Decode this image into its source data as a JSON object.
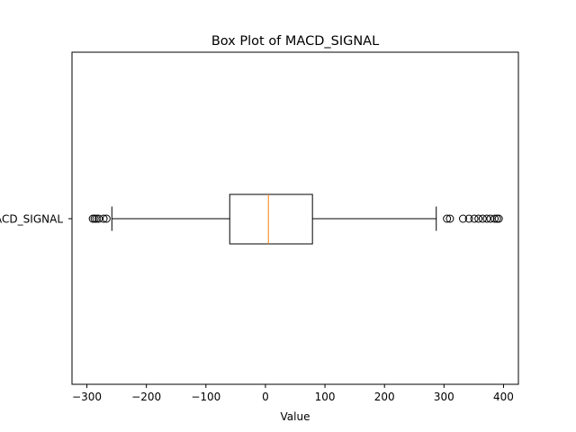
{
  "chart_data": {
    "type": "boxplot",
    "orientation": "horizontal",
    "title": "Box Plot of MACD_SIGNAL",
    "xlabel": "Value",
    "ylabel": "",
    "category_label": "MACD_SIGNAL",
    "xlim": [
      -325,
      425
    ],
    "xticks": [
      -300,
      -200,
      -100,
      0,
      100,
      200,
      300,
      400
    ],
    "xtick_labels": [
      "−300",
      "−200",
      "−100",
      "0",
      "100",
      "200",
      "300",
      "400"
    ],
    "grid": false,
    "box": {
      "whisker_low": -258,
      "q1": -60,
      "median": 5,
      "q3": 79,
      "whisker_high": 287
    },
    "outliers": [
      -290,
      -287,
      -284,
      -280,
      -272,
      -267,
      305,
      310,
      332,
      342,
      351,
      358,
      365,
      372,
      378,
      385,
      389,
      392
    ],
    "colors": {
      "box": "#000000",
      "median": "#ff7f0e",
      "flier": "#000000"
    }
  }
}
